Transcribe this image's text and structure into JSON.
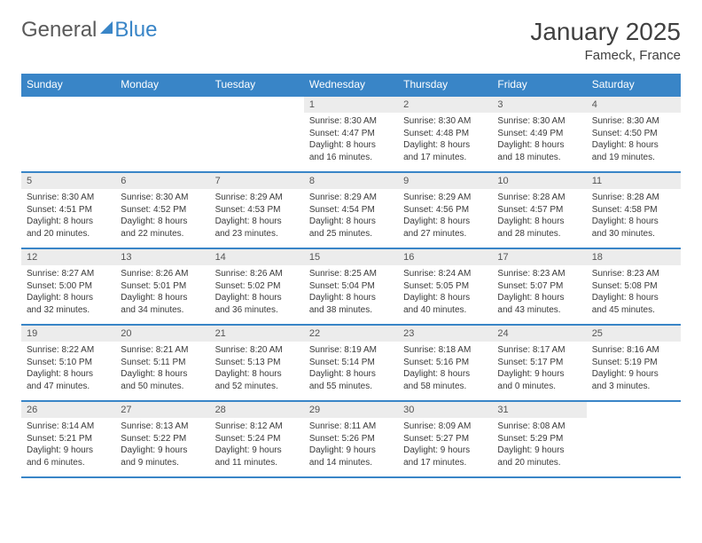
{
  "brand": {
    "part1": "General",
    "part2": "Blue"
  },
  "title": "January 2025",
  "location": "Fameck, France",
  "colors": {
    "header_bg": "#3985c7",
    "header_text": "#ffffff",
    "daynum_bg": "#ececec",
    "border": "#3985c7",
    "text": "#3a3a3a"
  },
  "typography": {
    "title_fontsize": 28,
    "location_fontsize": 15,
    "weekday_fontsize": 12,
    "body_fontsize": 10
  },
  "weekdays": [
    "Sunday",
    "Monday",
    "Tuesday",
    "Wednesday",
    "Thursday",
    "Friday",
    "Saturday"
  ],
  "weeks": [
    [
      {
        "empty": true
      },
      {
        "empty": true
      },
      {
        "empty": true
      },
      {
        "day": "1",
        "sunrise": "Sunrise: 8:30 AM",
        "sunset": "Sunset: 4:47 PM",
        "daylight": "Daylight: 8 hours and 16 minutes."
      },
      {
        "day": "2",
        "sunrise": "Sunrise: 8:30 AM",
        "sunset": "Sunset: 4:48 PM",
        "daylight": "Daylight: 8 hours and 17 minutes."
      },
      {
        "day": "3",
        "sunrise": "Sunrise: 8:30 AM",
        "sunset": "Sunset: 4:49 PM",
        "daylight": "Daylight: 8 hours and 18 minutes."
      },
      {
        "day": "4",
        "sunrise": "Sunrise: 8:30 AM",
        "sunset": "Sunset: 4:50 PM",
        "daylight": "Daylight: 8 hours and 19 minutes."
      }
    ],
    [
      {
        "day": "5",
        "sunrise": "Sunrise: 8:30 AM",
        "sunset": "Sunset: 4:51 PM",
        "daylight": "Daylight: 8 hours and 20 minutes."
      },
      {
        "day": "6",
        "sunrise": "Sunrise: 8:30 AM",
        "sunset": "Sunset: 4:52 PM",
        "daylight": "Daylight: 8 hours and 22 minutes."
      },
      {
        "day": "7",
        "sunrise": "Sunrise: 8:29 AM",
        "sunset": "Sunset: 4:53 PM",
        "daylight": "Daylight: 8 hours and 23 minutes."
      },
      {
        "day": "8",
        "sunrise": "Sunrise: 8:29 AM",
        "sunset": "Sunset: 4:54 PM",
        "daylight": "Daylight: 8 hours and 25 minutes."
      },
      {
        "day": "9",
        "sunrise": "Sunrise: 8:29 AM",
        "sunset": "Sunset: 4:56 PM",
        "daylight": "Daylight: 8 hours and 27 minutes."
      },
      {
        "day": "10",
        "sunrise": "Sunrise: 8:28 AM",
        "sunset": "Sunset: 4:57 PM",
        "daylight": "Daylight: 8 hours and 28 minutes."
      },
      {
        "day": "11",
        "sunrise": "Sunrise: 8:28 AM",
        "sunset": "Sunset: 4:58 PM",
        "daylight": "Daylight: 8 hours and 30 minutes."
      }
    ],
    [
      {
        "day": "12",
        "sunrise": "Sunrise: 8:27 AM",
        "sunset": "Sunset: 5:00 PM",
        "daylight": "Daylight: 8 hours and 32 minutes."
      },
      {
        "day": "13",
        "sunrise": "Sunrise: 8:26 AM",
        "sunset": "Sunset: 5:01 PM",
        "daylight": "Daylight: 8 hours and 34 minutes."
      },
      {
        "day": "14",
        "sunrise": "Sunrise: 8:26 AM",
        "sunset": "Sunset: 5:02 PM",
        "daylight": "Daylight: 8 hours and 36 minutes."
      },
      {
        "day": "15",
        "sunrise": "Sunrise: 8:25 AM",
        "sunset": "Sunset: 5:04 PM",
        "daylight": "Daylight: 8 hours and 38 minutes."
      },
      {
        "day": "16",
        "sunrise": "Sunrise: 8:24 AM",
        "sunset": "Sunset: 5:05 PM",
        "daylight": "Daylight: 8 hours and 40 minutes."
      },
      {
        "day": "17",
        "sunrise": "Sunrise: 8:23 AM",
        "sunset": "Sunset: 5:07 PM",
        "daylight": "Daylight: 8 hours and 43 minutes."
      },
      {
        "day": "18",
        "sunrise": "Sunrise: 8:23 AM",
        "sunset": "Sunset: 5:08 PM",
        "daylight": "Daylight: 8 hours and 45 minutes."
      }
    ],
    [
      {
        "day": "19",
        "sunrise": "Sunrise: 8:22 AM",
        "sunset": "Sunset: 5:10 PM",
        "daylight": "Daylight: 8 hours and 47 minutes."
      },
      {
        "day": "20",
        "sunrise": "Sunrise: 8:21 AM",
        "sunset": "Sunset: 5:11 PM",
        "daylight": "Daylight: 8 hours and 50 minutes."
      },
      {
        "day": "21",
        "sunrise": "Sunrise: 8:20 AM",
        "sunset": "Sunset: 5:13 PM",
        "daylight": "Daylight: 8 hours and 52 minutes."
      },
      {
        "day": "22",
        "sunrise": "Sunrise: 8:19 AM",
        "sunset": "Sunset: 5:14 PM",
        "daylight": "Daylight: 8 hours and 55 minutes."
      },
      {
        "day": "23",
        "sunrise": "Sunrise: 8:18 AM",
        "sunset": "Sunset: 5:16 PM",
        "daylight": "Daylight: 8 hours and 58 minutes."
      },
      {
        "day": "24",
        "sunrise": "Sunrise: 8:17 AM",
        "sunset": "Sunset: 5:17 PM",
        "daylight": "Daylight: 9 hours and 0 minutes."
      },
      {
        "day": "25",
        "sunrise": "Sunrise: 8:16 AM",
        "sunset": "Sunset: 5:19 PM",
        "daylight": "Daylight: 9 hours and 3 minutes."
      }
    ],
    [
      {
        "day": "26",
        "sunrise": "Sunrise: 8:14 AM",
        "sunset": "Sunset: 5:21 PM",
        "daylight": "Daylight: 9 hours and 6 minutes."
      },
      {
        "day": "27",
        "sunrise": "Sunrise: 8:13 AM",
        "sunset": "Sunset: 5:22 PM",
        "daylight": "Daylight: 9 hours and 9 minutes."
      },
      {
        "day": "28",
        "sunrise": "Sunrise: 8:12 AM",
        "sunset": "Sunset: 5:24 PM",
        "daylight": "Daylight: 9 hours and 11 minutes."
      },
      {
        "day": "29",
        "sunrise": "Sunrise: 8:11 AM",
        "sunset": "Sunset: 5:26 PM",
        "daylight": "Daylight: 9 hours and 14 minutes."
      },
      {
        "day": "30",
        "sunrise": "Sunrise: 8:09 AM",
        "sunset": "Sunset: 5:27 PM",
        "daylight": "Daylight: 9 hours and 17 minutes."
      },
      {
        "day": "31",
        "sunrise": "Sunrise: 8:08 AM",
        "sunset": "Sunset: 5:29 PM",
        "daylight": "Daylight: 9 hours and 20 minutes."
      },
      {
        "empty": true
      }
    ]
  ]
}
